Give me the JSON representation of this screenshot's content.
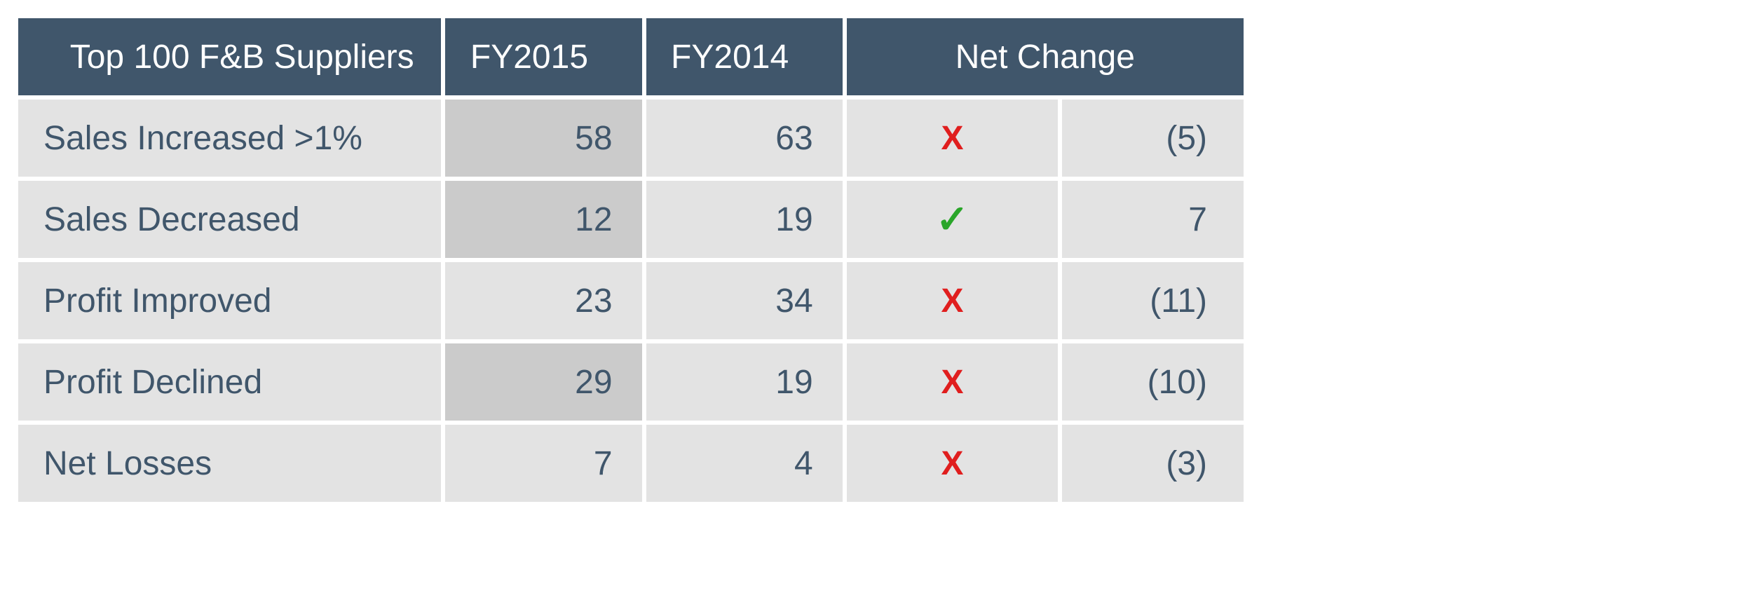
{
  "table": {
    "type": "table",
    "header_bg": "#40566b",
    "header_fg": "#ffffff",
    "body_fg": "#40566b",
    "row_bg_light": "#e3e3e3",
    "row_bg_dark": "#cbcbcb",
    "x_color": "#e01e1e",
    "check_color": "#2aa62a",
    "header_fontsize": 48,
    "cell_fontsize": 48,
    "columns": {
      "label": {
        "header": "Top 100 F&B Suppliers"
      },
      "fy2015": {
        "header": "FY2015"
      },
      "fy2014": {
        "header": "FY2014"
      },
      "netchg": {
        "header": "Net Change"
      }
    },
    "rows": [
      {
        "label": "Sales Increased >1%",
        "fy2015": "58",
        "fy2014": "63",
        "icon": "x",
        "netchg": "(5)",
        "fy2015_shade": "dark",
        "fy2014_shade": "light"
      },
      {
        "label": "Sales Decreased",
        "fy2015": "12",
        "fy2014": "19",
        "icon": "check",
        "netchg": "7",
        "fy2015_shade": "dark",
        "fy2014_shade": "light"
      },
      {
        "label": "Profit Improved",
        "fy2015": "23",
        "fy2014": "34",
        "icon": "x",
        "netchg": "(11)",
        "fy2015_shade": "light",
        "fy2014_shade": "light"
      },
      {
        "label": "Profit Declined",
        "fy2015": "29",
        "fy2014": "19",
        "icon": "x",
        "netchg": "(10)",
        "fy2015_shade": "dark",
        "fy2014_shade": "light"
      },
      {
        "label": "Net Losses",
        "fy2015": "7",
        "fy2014": "4",
        "icon": "x",
        "netchg": "(3)",
        "fy2015_shade": "light",
        "fy2014_shade": "light"
      }
    ]
  }
}
